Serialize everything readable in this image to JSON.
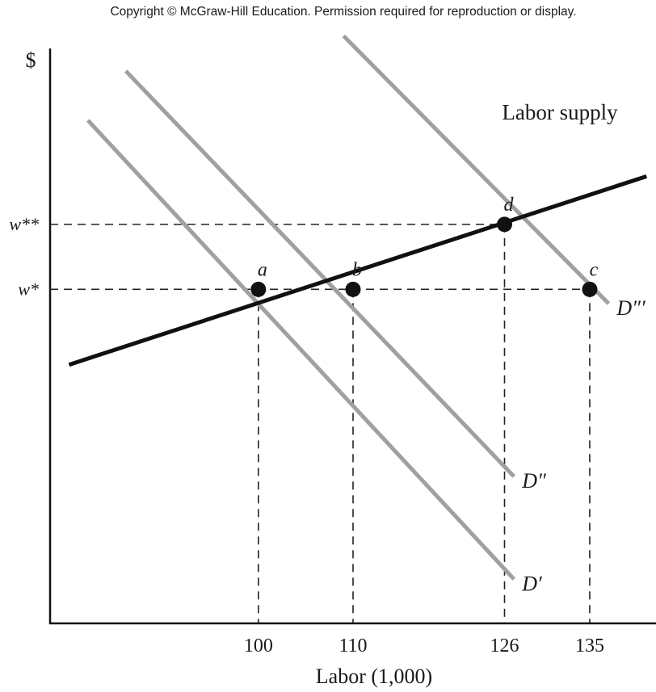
{
  "copyright": "Copyright © McGraw-Hill Education. Permission required for reproduction or display.",
  "chart_data": {
    "type": "line",
    "ylabel": "$",
    "xlabel": "Labor (1,000)",
    "x_ticks": [
      100,
      110,
      126,
      135
    ],
    "y_ticks": [
      {
        "label": "w*",
        "level": "w_star"
      },
      {
        "label": "w**",
        "level": "w_star_star"
      }
    ],
    "supply": {
      "name": "Labor supply",
      "color": "#111111",
      "points": [
        [
          80,
          0.42
        ],
        [
          141,
          1.87
        ]
      ]
    },
    "demand_color": "#a0a0a0",
    "demand": [
      {
        "name": "D′",
        "points": [
          [
            82,
            2.3
          ],
          [
            127,
            -1.23
          ]
        ]
      },
      {
        "name": "D″",
        "points": [
          [
            86,
            2.68
          ],
          [
            127,
            -0.44
          ]
        ]
      },
      {
        "name": "D″′",
        "points": [
          [
            109,
            2.95
          ],
          [
            137,
            0.89
          ]
        ]
      }
    ],
    "wage_levels": {
      "w_star": 1.0,
      "w_star_star": 1.5
    },
    "points": [
      {
        "label": "a",
        "x": 100,
        "y": 1.0
      },
      {
        "label": "b",
        "x": 110,
        "y": 1.0
      },
      {
        "label": "c",
        "x": 135,
        "y": 1.0
      },
      {
        "label": "d",
        "x": 126,
        "y": 1.5
      }
    ],
    "xlim": [
      78,
      142
    ],
    "ylim": [
      -1.57,
      3.04
    ],
    "grid": false
  }
}
